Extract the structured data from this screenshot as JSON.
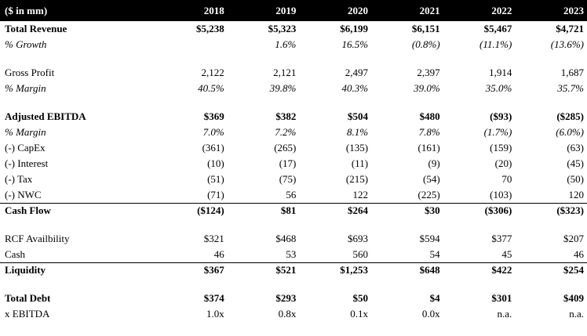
{
  "header": {
    "unit_label": "($ in mm)",
    "years": [
      "2018",
      "2019",
      "2020",
      "2021",
      "2022",
      "2023"
    ]
  },
  "rows": {
    "total_revenue": {
      "label": "Total Revenue",
      "values": [
        "$5,238",
        "$5,323",
        "$6,199",
        "$6,151",
        "$5,467",
        "$4,721"
      ]
    },
    "revenue_growth": {
      "label": "% Growth",
      "values": [
        "",
        "1.6%",
        "16.5%",
        "(0.8%)",
        "(11.1%)",
        "(13.6%)"
      ]
    },
    "gross_profit": {
      "label": "Gross Profit",
      "values": [
        "2,122",
        "2,121",
        "2,497",
        "2,397",
        "1,914",
        "1,687"
      ]
    },
    "gross_margin": {
      "label": "% Margin",
      "values": [
        "40.5%",
        "39.8%",
        "40.3%",
        "39.0%",
        "35.0%",
        "35.7%"
      ]
    },
    "adjusted_ebitda": {
      "label": "Adjusted EBITDA",
      "values": [
        "$369",
        "$382",
        "$504",
        "$480",
        "($93)",
        "($285)"
      ]
    },
    "ebitda_margin": {
      "label": "% Margin",
      "values": [
        "7.0%",
        "7.2%",
        "8.1%",
        "7.8%",
        "(1.7%)",
        "(6.0%)"
      ]
    },
    "capex": {
      "label": "(-) CapEx",
      "values": [
        "(361)",
        "(265)",
        "(135)",
        "(161)",
        "(159)",
        "(63)"
      ]
    },
    "interest": {
      "label": "(-) Interest",
      "values": [
        "(10)",
        "(17)",
        "(11)",
        "(9)",
        "(20)",
        "(45)"
      ]
    },
    "tax": {
      "label": "(-) Tax",
      "values": [
        "(51)",
        "(75)",
        "(215)",
        "(54)",
        "70",
        "(50)"
      ]
    },
    "nwc": {
      "label": "(-) NWC",
      "values": [
        "(71)",
        "56",
        "122",
        "(225)",
        "(103)",
        "120"
      ]
    },
    "cash_flow": {
      "label": "Cash Flow",
      "values": [
        "($124)",
        "$81",
        "$264",
        "$30",
        "($306)",
        "($323)"
      ]
    },
    "rcf_availability": {
      "label": "RCF Availbility",
      "values": [
        "$321",
        "$468",
        "$693",
        "$594",
        "$377",
        "$207"
      ]
    },
    "cash": {
      "label": "Cash",
      "values": [
        "46",
        "53",
        "560",
        "54",
        "45",
        "46"
      ]
    },
    "liquidity": {
      "label": "Liquidity",
      "values": [
        "$367",
        "$521",
        "$1,253",
        "$648",
        "$422",
        "$254"
      ]
    },
    "total_debt": {
      "label": "Total Debt",
      "values": [
        "$374",
        "$293",
        "$50",
        "$4",
        "$301",
        "$409"
      ]
    },
    "debt_ebitda": {
      "label": "x EBITDA",
      "values": [
        "1.0x",
        "0.8x",
        "0.1x",
        "0.0x",
        "n.a.",
        "n.a."
      ]
    }
  }
}
